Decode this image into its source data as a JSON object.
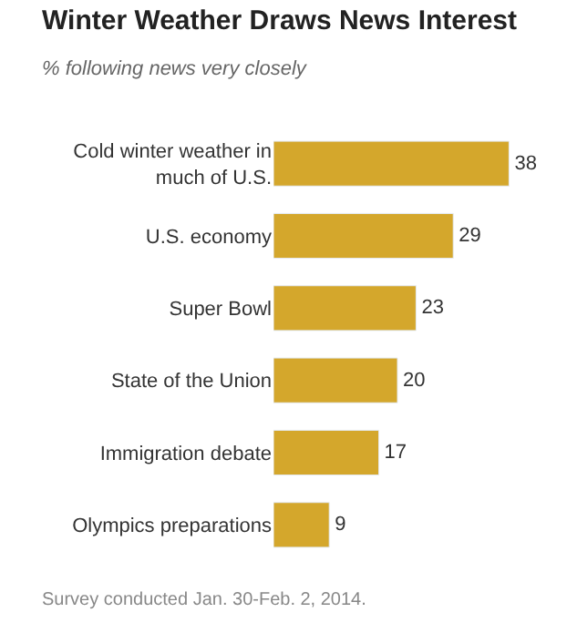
{
  "chart_data": {
    "type": "bar",
    "orientation": "horizontal",
    "title": "Winter Weather Draws News Interest",
    "subtitle": "% following news very closely",
    "categories": [
      "Cold winter weather in much of U.S.",
      "U.S. economy",
      "Super Bowl",
      "State of the Union",
      "Immigration debate",
      "Olympics preparations"
    ],
    "values": [
      38,
      29,
      23,
      20,
      17,
      9
    ],
    "color": "#d4a72c",
    "data_labels": true,
    "annotations": [
      "Survey conducted Jan. 30-Feb. 2, 2014."
    ]
  }
}
